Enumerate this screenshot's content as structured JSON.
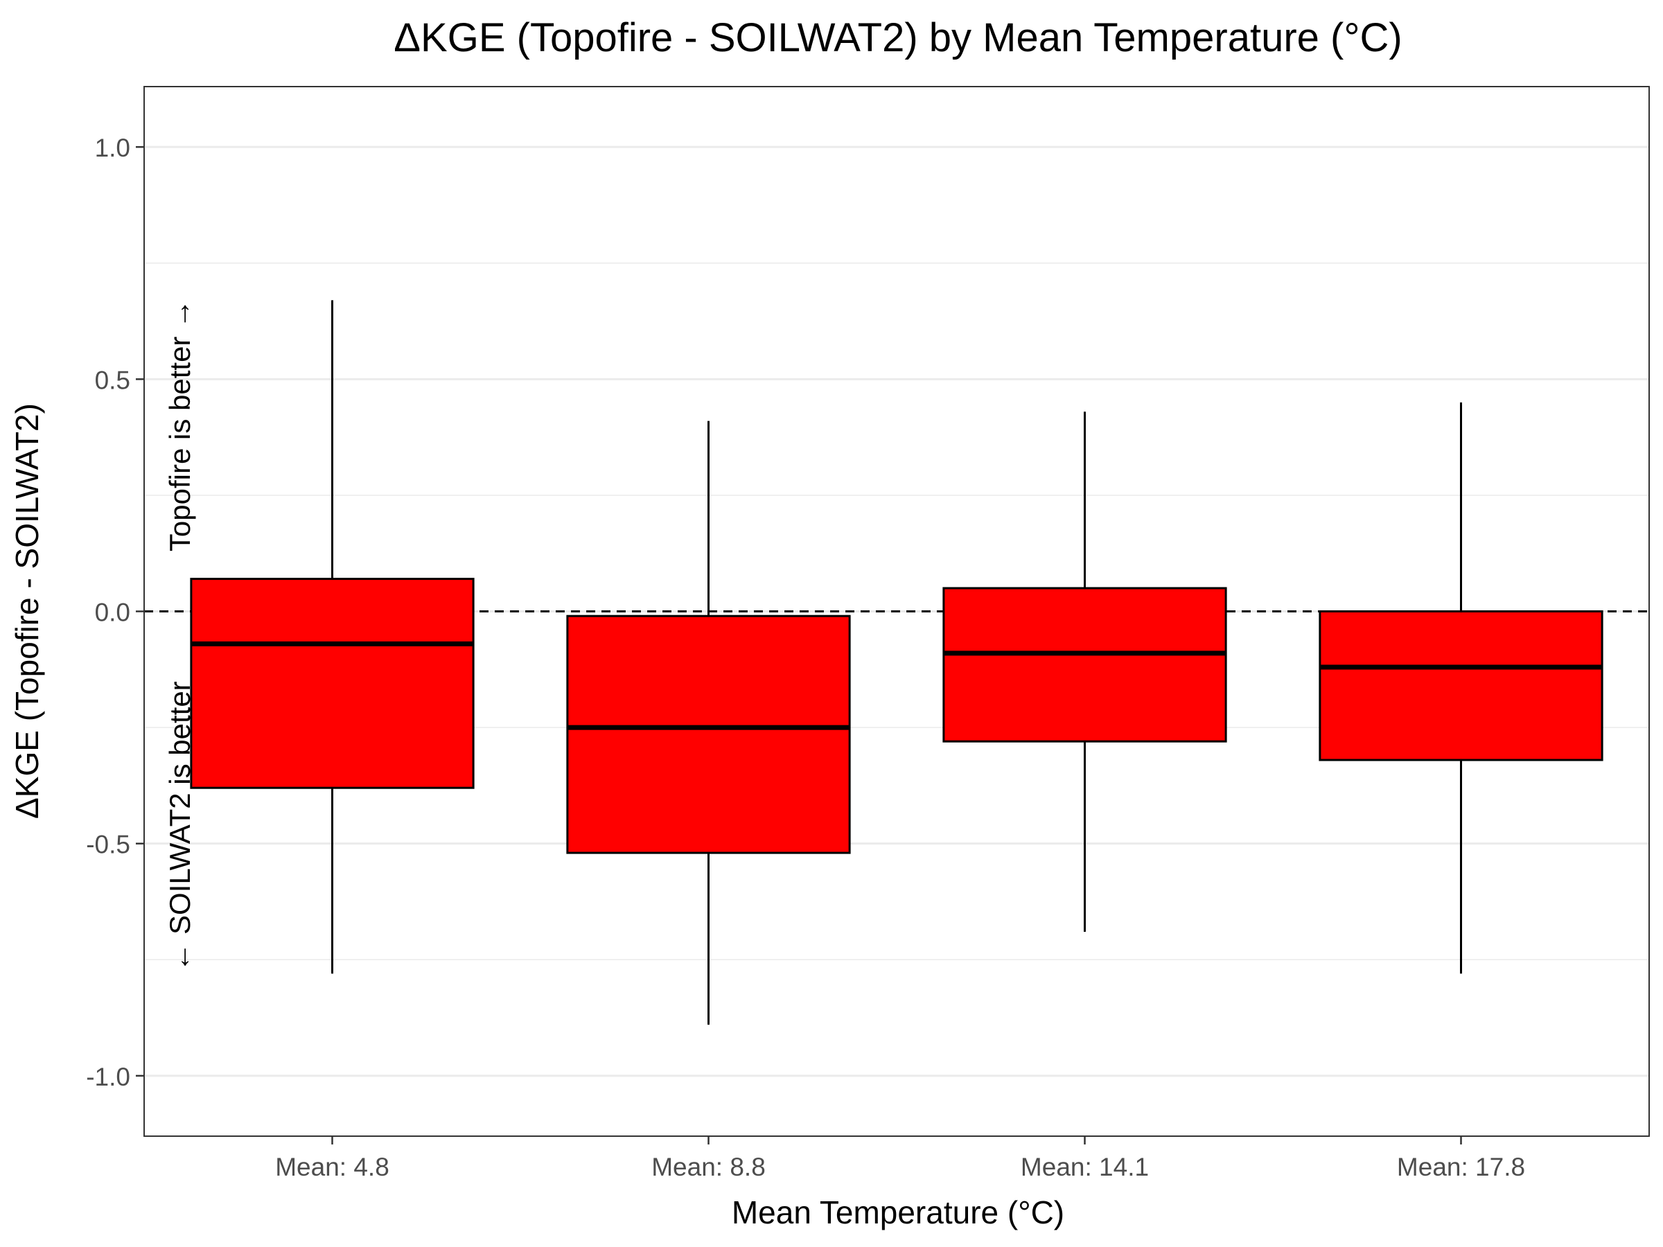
{
  "chart_data": {
    "type": "box",
    "title": "ΔKGE (Topofire - SOILWAT2) by Mean Temperature (°C)",
    "xlabel": "Mean Temperature (°C)",
    "ylabel": "ΔKGE (Topofire - SOILWAT2)",
    "ylim": [
      -1.13,
      1.13
    ],
    "yticks": [
      1.0,
      0.5,
      0.0,
      -0.5,
      -1.0
    ],
    "ytick_labels": [
      "1.0",
      "0.5",
      "0.0",
      "-0.5",
      "-1.0"
    ],
    "categories": [
      "Mean: 4.8",
      "Mean: 8.8",
      "Mean: 14.1",
      "Mean: 17.8"
    ],
    "boxes": [
      {
        "min": -0.78,
        "q1": -0.38,
        "median": -0.07,
        "q3": 0.07,
        "max": 0.67
      },
      {
        "min": -0.89,
        "q1": -0.52,
        "median": -0.25,
        "q3": -0.01,
        "max": 0.41
      },
      {
        "min": -0.69,
        "q1": -0.28,
        "median": -0.09,
        "q3": 0.05,
        "max": 0.43
      },
      {
        "min": -0.78,
        "q1": -0.32,
        "median": -0.12,
        "q3": 0.0,
        "max": 0.45
      }
    ],
    "reference_line": 0.0,
    "grid": true,
    "fill_color": "#ff0000",
    "annotations": {
      "upper": "Topofire is better →",
      "lower": "← SOILWAT2 is better"
    }
  }
}
